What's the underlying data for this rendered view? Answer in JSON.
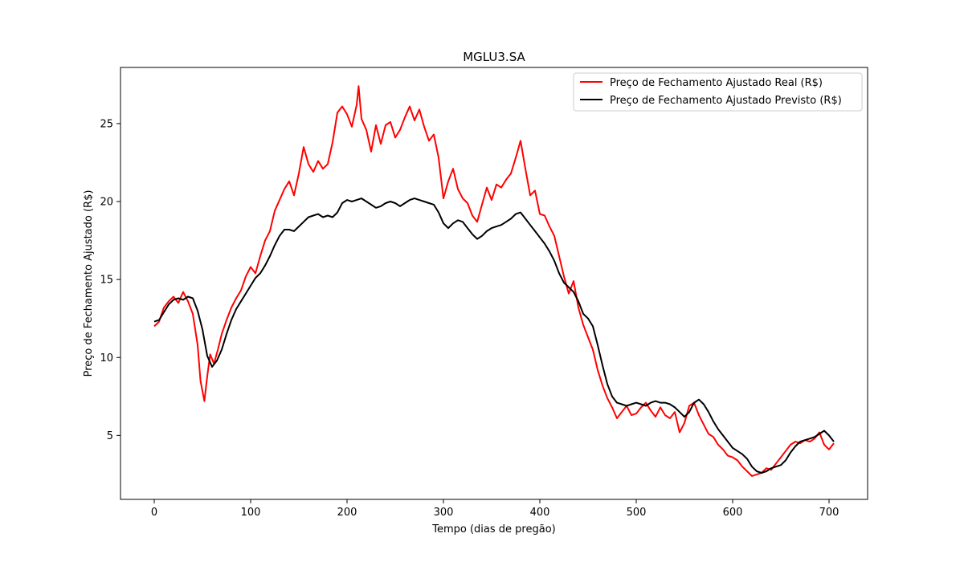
{
  "chart_data": {
    "type": "line",
    "title": "MGLU3.SA",
    "xlabel": "Tempo (dias de pregão)",
    "ylabel": "Preço de Fechamento Ajustado (R$)",
    "xlim": [
      -35,
      740
    ],
    "ylim": [
      0.9,
      28.6
    ],
    "xticks": [
      0,
      100,
      200,
      300,
      400,
      500,
      600,
      700
    ],
    "yticks": [
      5,
      10,
      15,
      20,
      25
    ],
    "grid": false,
    "legend_position": "top-right",
    "series": [
      {
        "name": "Preço de Fechamento Ajustado Real (R$)",
        "color": "#ff0000",
        "x": [
          0,
          5,
          10,
          15,
          20,
          25,
          30,
          35,
          40,
          45,
          48,
          52,
          55,
          58,
          62,
          66,
          70,
          75,
          80,
          85,
          90,
          95,
          100,
          105,
          110,
          115,
          120,
          125,
          130,
          135,
          140,
          145,
          150,
          155,
          160,
          165,
          170,
          175,
          180,
          185,
          190,
          195,
          200,
          205,
          210,
          212,
          215,
          220,
          225,
          230,
          235,
          240,
          245,
          250,
          255,
          260,
          265,
          270,
          275,
          280,
          285,
          290,
          295,
          300,
          305,
          310,
          315,
          320,
          325,
          330,
          335,
          340,
          345,
          350,
          355,
          360,
          365,
          370,
          375,
          380,
          385,
          390,
          395,
          400,
          405,
          410,
          415,
          420,
          425,
          430,
          435,
          440,
          445,
          450,
          455,
          460,
          465,
          470,
          475,
          480,
          485,
          490,
          495,
          500,
          505,
          510,
          515,
          520,
          525,
          530,
          535,
          540,
          545,
          550,
          555,
          560,
          565,
          570,
          575,
          580,
          585,
          590,
          595,
          600,
          605,
          610,
          615,
          620,
          625,
          630,
          635,
          640,
          645,
          650,
          655,
          660,
          665,
          670,
          675,
          680,
          685,
          690,
          695,
          700,
          705
        ],
        "values": [
          12,
          12.3,
          13.2,
          13.6,
          13.9,
          13.5,
          14.2,
          13.6,
          12.8,
          10.8,
          8.5,
          7.2,
          8.8,
          10.2,
          9.6,
          10.5,
          11.5,
          12.4,
          13.2,
          13.8,
          14.3,
          15.2,
          15.8,
          15.4,
          16.5,
          17.5,
          18.1,
          19.4,
          20.1,
          20.8,
          21.3,
          20.4,
          21.8,
          23.5,
          22.4,
          21.9,
          22.6,
          22.1,
          22.4,
          23.8,
          25.7,
          26.1,
          25.6,
          24.8,
          26.2,
          27.4,
          25.3,
          24.6,
          23.2,
          24.9,
          23.7,
          24.9,
          25.1,
          24.1,
          24.6,
          25.4,
          26.1,
          25.2,
          25.9,
          24.8,
          23.9,
          24.3,
          22.8,
          20.2,
          21.3,
          22.1,
          20.8,
          20.2,
          19.9,
          19.1,
          18.7,
          19.8,
          20.9,
          20.1,
          21.1,
          20.9,
          21.4,
          21.8,
          22.8,
          23.9,
          22.1,
          20.4,
          20.7,
          19.2,
          19.1,
          18.4,
          17.8,
          16.5,
          15.2,
          14.1,
          14.9,
          13.2,
          12.1,
          11.3,
          10.5,
          9.2,
          8.2,
          7.4,
          6.8,
          6.1,
          6.5,
          6.9,
          6.3,
          6.4,
          6.8,
          7.1,
          6.6,
          6.2,
          6.8,
          6.3,
          6.1,
          6.5,
          5.2,
          5.8,
          6.9,
          7.1,
          6.3,
          5.7,
          5.1,
          4.9,
          4.4,
          4.1,
          3.7,
          3.6,
          3.4,
          3.0,
          2.7,
          2.4,
          2.5,
          2.6,
          2.9,
          2.8,
          3.2,
          3.6,
          4.0,
          4.4,
          4.6,
          4.5,
          4.7,
          4.6,
          4.8,
          5.2,
          4.4,
          4.1,
          4.5
        ]
      },
      {
        "name": "Preço de Fechamento Ajustado Previsto (R$)",
        "color": "#000000",
        "x": [
          0,
          5,
          10,
          15,
          20,
          25,
          30,
          35,
          40,
          45,
          50,
          55,
          60,
          65,
          70,
          75,
          80,
          85,
          90,
          95,
          100,
          105,
          110,
          115,
          120,
          125,
          130,
          135,
          140,
          145,
          150,
          155,
          160,
          165,
          170,
          175,
          180,
          185,
          190,
          195,
          200,
          205,
          210,
          215,
          220,
          225,
          230,
          235,
          240,
          245,
          250,
          255,
          260,
          265,
          270,
          275,
          280,
          285,
          290,
          295,
          300,
          305,
          310,
          315,
          320,
          325,
          330,
          335,
          340,
          345,
          350,
          355,
          360,
          365,
          370,
          375,
          380,
          385,
          390,
          395,
          400,
          405,
          410,
          415,
          420,
          425,
          430,
          435,
          440,
          445,
          450,
          455,
          460,
          465,
          470,
          475,
          480,
          485,
          490,
          495,
          500,
          505,
          510,
          515,
          520,
          525,
          530,
          535,
          540,
          545,
          550,
          555,
          560,
          565,
          570,
          575,
          580,
          585,
          590,
          595,
          600,
          605,
          610,
          615,
          620,
          625,
          630,
          635,
          640,
          645,
          650,
          655,
          660,
          665,
          670,
          675,
          680,
          685,
          690,
          695,
          700,
          705
        ],
        "values": [
          12.3,
          12.4,
          12.9,
          13.4,
          13.7,
          13.8,
          13.7,
          13.9,
          13.8,
          13.0,
          11.8,
          10.1,
          9.4,
          9.8,
          10.5,
          11.5,
          12.4,
          13.1,
          13.6,
          14.1,
          14.6,
          15.1,
          15.4,
          15.9,
          16.5,
          17.2,
          17.8,
          18.2,
          18.2,
          18.1,
          18.4,
          18.7,
          19.0,
          19.1,
          19.2,
          19.0,
          19.1,
          19.0,
          19.3,
          19.9,
          20.1,
          20.0,
          20.1,
          20.2,
          20.0,
          19.8,
          19.6,
          19.7,
          19.9,
          20.0,
          19.9,
          19.7,
          19.9,
          20.1,
          20.2,
          20.1,
          20.0,
          19.9,
          19.8,
          19.3,
          18.6,
          18.3,
          18.6,
          18.8,
          18.7,
          18.3,
          17.9,
          17.6,
          17.8,
          18.1,
          18.3,
          18.4,
          18.5,
          18.7,
          18.9,
          19.2,
          19.3,
          18.9,
          18.5,
          18.1,
          17.7,
          17.3,
          16.8,
          16.2,
          15.4,
          14.8,
          14.5,
          14.2,
          13.6,
          12.8,
          12.5,
          12.0,
          10.8,
          9.5,
          8.3,
          7.5,
          7.1,
          7.0,
          6.9,
          7.0,
          7.1,
          7.0,
          6.9,
          7.1,
          7.2,
          7.1,
          7.1,
          7.0,
          6.8,
          6.5,
          6.2,
          6.5,
          7.1,
          7.3,
          7.0,
          6.5,
          5.9,
          5.4,
          5.0,
          4.6,
          4.2,
          4.0,
          3.8,
          3.5,
          3.0,
          2.7,
          2.6,
          2.7,
          2.9,
          3.0,
          3.1,
          3.4,
          3.9,
          4.3,
          4.6,
          4.7,
          4.8,
          4.9,
          5.1,
          5.3,
          5.0,
          4.6
        ]
      }
    ]
  }
}
